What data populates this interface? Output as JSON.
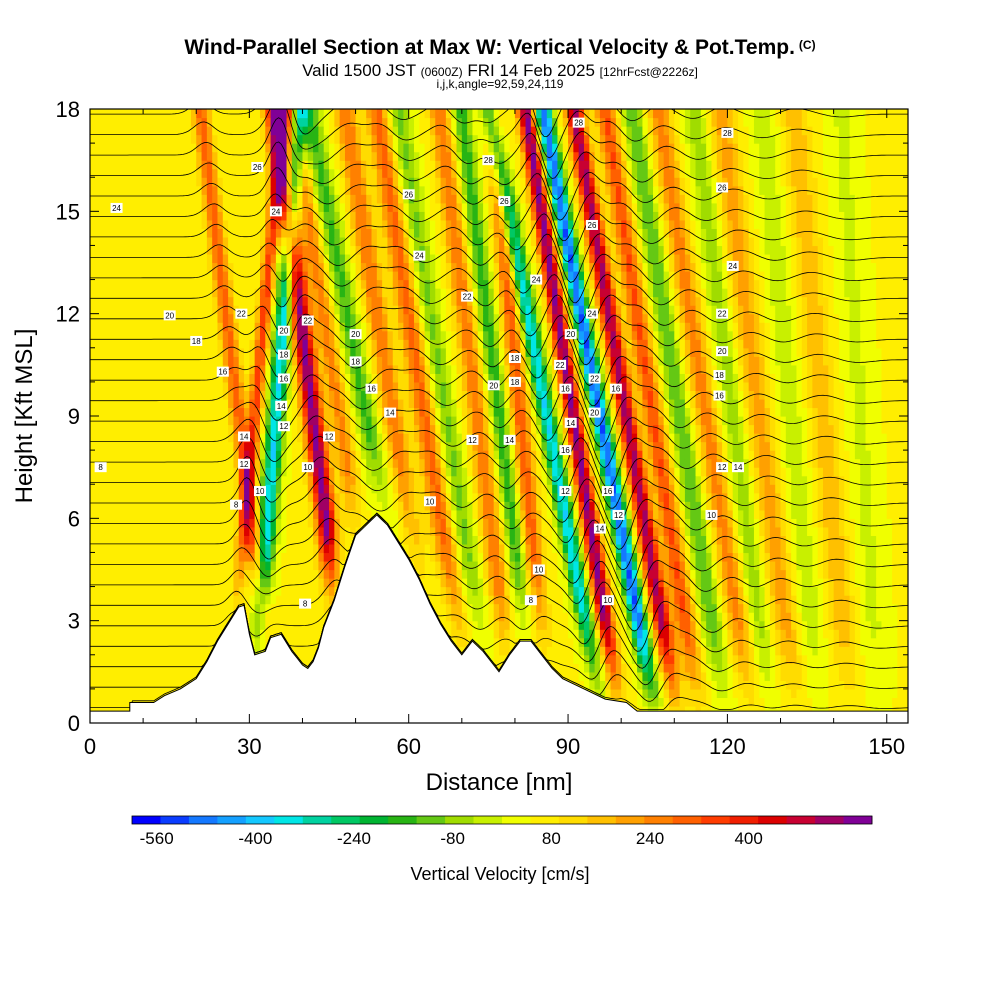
{
  "header": {
    "title": "Wind-Parallel Section at Max W: Vertical Velocity & Pot.Temp.",
    "title_mark": "(C)",
    "valid_prefix": "Valid 1500 JST",
    "valid_utc": "(0600Z)",
    "valid_date": "FRI 14 Feb 2025",
    "forecast": "[12hrFcst@2226z]",
    "indices": "i,j,k,angle=92,59,24,119"
  },
  "chart_data": {
    "type": "heatmap",
    "xlabel": "Distance [nm]",
    "ylabel": "Height [Kft MSL]",
    "xlim": [
      0,
      154
    ],
    "ylim": [
      0,
      18
    ],
    "xticks": [
      0,
      30,
      60,
      90,
      120,
      150
    ],
    "yticks": [
      0,
      3,
      6,
      9,
      12,
      15,
      18
    ],
    "colorbar": {
      "label": "Vertical Velocity [cm/s]",
      "range": [
        -600,
        600
      ],
      "ticks": [
        -560,
        -400,
        -240,
        -80,
        80,
        240,
        400
      ],
      "colors": [
        "#0000ff",
        "#0a3cff",
        "#1478ff",
        "#14a0ff",
        "#14c8ff",
        "#00e6e6",
        "#00d2a0",
        "#00c864",
        "#00b432",
        "#28b414",
        "#64c814",
        "#a0dc00",
        "#c8f000",
        "#f0ff00",
        "#ffee00",
        "#ffdc00",
        "#ffc000",
        "#ffa000",
        "#ff8000",
        "#ff6000",
        "#ff3c00",
        "#f01e00",
        "#dc0000",
        "#c80032",
        "#a00064",
        "#800096"
      ]
    },
    "terrain": [
      {
        "x": 0,
        "y": 0.35
      },
      {
        "x": 7.5,
        "y": 0.35
      },
      {
        "x": 7.5,
        "y": 0.6
      },
      {
        "x": 12,
        "y": 0.6
      },
      {
        "x": 14,
        "y": 0.8
      },
      {
        "x": 17,
        "y": 1.0
      },
      {
        "x": 20,
        "y": 1.3
      },
      {
        "x": 22,
        "y": 1.8
      },
      {
        "x": 24,
        "y": 2.4
      },
      {
        "x": 26,
        "y": 2.9
      },
      {
        "x": 28,
        "y": 3.4
      },
      {
        "x": 29,
        "y": 3.45
      },
      {
        "x": 30,
        "y": 2.6
      },
      {
        "x": 31,
        "y": 2.0
      },
      {
        "x": 33,
        "y": 2.1
      },
      {
        "x": 34,
        "y": 2.5
      },
      {
        "x": 36,
        "y": 2.6
      },
      {
        "x": 38,
        "y": 2.1
      },
      {
        "x": 39,
        "y": 1.9
      },
      {
        "x": 40,
        "y": 1.7
      },
      {
        "x": 41,
        "y": 1.6
      },
      {
        "x": 42,
        "y": 1.8
      },
      {
        "x": 43,
        "y": 2.2
      },
      {
        "x": 44,
        "y": 2.8
      },
      {
        "x": 46,
        "y": 3.6
      },
      {
        "x": 48,
        "y": 4.6
      },
      {
        "x": 50,
        "y": 5.5
      },
      {
        "x": 52,
        "y": 5.8
      },
      {
        "x": 54,
        "y": 6.1
      },
      {
        "x": 56,
        "y": 5.8
      },
      {
        "x": 58,
        "y": 5.3
      },
      {
        "x": 60,
        "y": 4.8
      },
      {
        "x": 62,
        "y": 4.2
      },
      {
        "x": 64,
        "y": 3.5
      },
      {
        "x": 66,
        "y": 2.9
      },
      {
        "x": 68,
        "y": 2.4
      },
      {
        "x": 70,
        "y": 2.0
      },
      {
        "x": 72,
        "y": 2.4
      },
      {
        "x": 74,
        "y": 2.1
      },
      {
        "x": 76,
        "y": 1.7
      },
      {
        "x": 77,
        "y": 1.5
      },
      {
        "x": 79,
        "y": 2.0
      },
      {
        "x": 81,
        "y": 2.4
      },
      {
        "x": 83,
        "y": 2.4
      },
      {
        "x": 85,
        "y": 2.0
      },
      {
        "x": 87,
        "y": 1.6
      },
      {
        "x": 89,
        "y": 1.3
      },
      {
        "x": 93,
        "y": 1.0
      },
      {
        "x": 97,
        "y": 0.7
      },
      {
        "x": 101,
        "y": 0.6
      },
      {
        "x": 103,
        "y": 0.35
      },
      {
        "x": 154,
        "y": 0.35
      }
    ],
    "updrafts": [
      {
        "x": 28,
        "w": 260,
        "width": 1.6,
        "tilt": -0.08
      },
      {
        "x": 31,
        "w": 300,
        "width": 1.3,
        "tilt": 0.06
      },
      {
        "x": 35,
        "w": -420,
        "width": 1.6,
        "tilt": 0.05
      },
      {
        "x": 42,
        "w": 520,
        "width": 1.9,
        "tilt": -0.08
      },
      {
        "x": 47,
        "w": 200,
        "width": 1.8,
        "tilt": -0.1
      },
      {
        "x": 52,
        "w": -200,
        "width": 2.0,
        "tilt": -0.12
      },
      {
        "x": 57,
        "w": 220,
        "width": 2.0,
        "tilt": -0.1
      },
      {
        "x": 63,
        "w": 240,
        "width": 2.2,
        "tilt": -0.1
      },
      {
        "x": 67,
        "w": -160,
        "width": 2.0,
        "tilt": -0.1
      },
      {
        "x": 73,
        "w": 220,
        "width": 2.0,
        "tilt": -0.08
      },
      {
        "x": 77,
        "w": -220,
        "width": 1.8,
        "tilt": -0.08
      },
      {
        "x": 81,
        "w": 260,
        "width": 1.8,
        "tilt": -0.06
      },
      {
        "x": 86,
        "w": -420,
        "width": 1.6,
        "tilt": -0.12
      },
      {
        "x": 91,
        "w": 520,
        "width": 1.6,
        "tilt": -0.1
      },
      {
        "x": 96,
        "w": -560,
        "width": 1.6,
        "tilt": -0.12
      },
      {
        "x": 101,
        "w": 480,
        "width": 1.7,
        "tilt": -0.11
      },
      {
        "x": 106,
        "w": 280,
        "width": 1.9,
        "tilt": -0.1
      },
      {
        "x": 111,
        "w": -180,
        "width": 2.0,
        "tilt": -0.1
      },
      {
        "x": 116,
        "w": 200,
        "width": 2.2,
        "tilt": -0.1
      },
      {
        "x": 121,
        "w": -120,
        "width": 2.2,
        "tilt": -0.08
      },
      {
        "x": 126,
        "w": 160,
        "width": 2.4,
        "tilt": -0.08
      },
      {
        "x": 132,
        "w": -80,
        "width": 2.4,
        "tilt": -0.06
      },
      {
        "x": 138,
        "w": 120,
        "width": 2.6,
        "tilt": -0.06
      },
      {
        "x": 145,
        "w": -60,
        "width": 2.6,
        "tilt": -0.04
      }
    ],
    "contour_labels": [
      {
        "x": 31.5,
        "y": 16.3,
        "text": "26"
      },
      {
        "x": 35,
        "y": 15.0,
        "text": "24"
      },
      {
        "x": 5,
        "y": 15.1,
        "text": "24"
      },
      {
        "x": 28.5,
        "y": 12.0,
        "text": "22"
      },
      {
        "x": 15,
        "y": 11.95,
        "text": "20"
      },
      {
        "x": 20,
        "y": 11.2,
        "text": "18"
      },
      {
        "x": 25,
        "y": 10.3,
        "text": "16"
      },
      {
        "x": 36.5,
        "y": 11.5,
        "text": "20"
      },
      {
        "x": 41,
        "y": 11.8,
        "text": "22"
      },
      {
        "x": 36.5,
        "y": 10.8,
        "text": "18"
      },
      {
        "x": 36.5,
        "y": 10.1,
        "text": "16"
      },
      {
        "x": 36,
        "y": 9.3,
        "text": "14"
      },
      {
        "x": 36.5,
        "y": 8.7,
        "text": "12"
      },
      {
        "x": 29,
        "y": 8.4,
        "text": "14"
      },
      {
        "x": 29,
        "y": 7.6,
        "text": "12"
      },
      {
        "x": 32,
        "y": 6.8,
        "text": "10"
      },
      {
        "x": 27.5,
        "y": 6.4,
        "text": "8"
      },
      {
        "x": 41,
        "y": 7.5,
        "text": "10"
      },
      {
        "x": 45,
        "y": 8.4,
        "text": "12"
      },
      {
        "x": 40.5,
        "y": 3.5,
        "text": "8"
      },
      {
        "x": 2,
        "y": 7.5,
        "text": "8"
      },
      {
        "x": 60,
        "y": 15.5,
        "text": "26"
      },
      {
        "x": 62,
        "y": 13.7,
        "text": "24"
      },
      {
        "x": 71,
        "y": 12.5,
        "text": "22"
      },
      {
        "x": 50,
        "y": 11.4,
        "text": "20"
      },
      {
        "x": 50,
        "y": 10.6,
        "text": "18"
      },
      {
        "x": 53,
        "y": 9.8,
        "text": "16"
      },
      {
        "x": 56.5,
        "y": 9.1,
        "text": "14"
      },
      {
        "x": 64,
        "y": 6.5,
        "text": "10"
      },
      {
        "x": 72,
        "y": 8.3,
        "text": "12"
      },
      {
        "x": 75,
        "y": 16.5,
        "text": "28"
      },
      {
        "x": 78,
        "y": 15.3,
        "text": "26"
      },
      {
        "x": 84,
        "y": 13.0,
        "text": "24"
      },
      {
        "x": 76,
        "y": 9.9,
        "text": "20"
      },
      {
        "x": 79,
        "y": 8.3,
        "text": "14"
      },
      {
        "x": 80,
        "y": 10.7,
        "text": "18"
      },
      {
        "x": 80,
        "y": 10.0,
        "text": "18"
      },
      {
        "x": 84.5,
        "y": 4.5,
        "text": "10"
      },
      {
        "x": 83,
        "y": 3.6,
        "text": "8"
      },
      {
        "x": 92,
        "y": 17.6,
        "text": "28"
      },
      {
        "x": 94.5,
        "y": 14.6,
        "text": "26"
      },
      {
        "x": 94.5,
        "y": 12.0,
        "text": "24"
      },
      {
        "x": 90.5,
        "y": 11.4,
        "text": "20"
      },
      {
        "x": 88.5,
        "y": 10.5,
        "text": "22"
      },
      {
        "x": 95,
        "y": 10.1,
        "text": "22"
      },
      {
        "x": 89.5,
        "y": 9.8,
        "text": "16"
      },
      {
        "x": 95,
        "y": 9.1,
        "text": "20"
      },
      {
        "x": 99,
        "y": 9.8,
        "text": "16"
      },
      {
        "x": 90.5,
        "y": 8.8,
        "text": "14"
      },
      {
        "x": 89.5,
        "y": 8.0,
        "text": "16"
      },
      {
        "x": 89.5,
        "y": 6.8,
        "text": "12"
      },
      {
        "x": 97.5,
        "y": 6.8,
        "text": "16"
      },
      {
        "x": 99.5,
        "y": 6.1,
        "text": "12"
      },
      {
        "x": 96,
        "y": 5.7,
        "text": "14"
      },
      {
        "x": 97.5,
        "y": 3.6,
        "text": "10"
      },
      {
        "x": 120,
        "y": 17.3,
        "text": "28"
      },
      {
        "x": 119,
        "y": 15.7,
        "text": "26"
      },
      {
        "x": 121,
        "y": 13.4,
        "text": "24"
      },
      {
        "x": 119,
        "y": 12.0,
        "text": "22"
      },
      {
        "x": 119,
        "y": 10.9,
        "text": "20"
      },
      {
        "x": 118.5,
        "y": 10.2,
        "text": "18"
      },
      {
        "x": 118.5,
        "y": 9.6,
        "text": "16"
      },
      {
        "x": 119,
        "y": 7.5,
        "text": "12"
      },
      {
        "x": 122,
        "y": 7.5,
        "text": "14"
      },
      {
        "x": 117,
        "y": 6.1,
        "text": "10"
      }
    ]
  }
}
